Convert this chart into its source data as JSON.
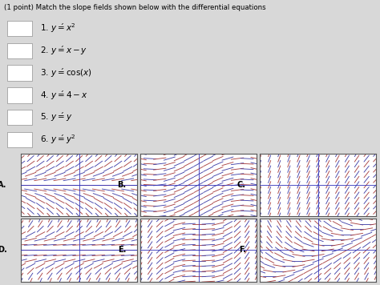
{
  "title": "(1 point) Match the slope fields shown below with the differential equations",
  "equations": [
    "1. $y\\'= x^2$",
    "2. $y\\'= x - y$",
    "3. $y\\'= \\cos(x)$",
    "4. $y\\'= 4 - x$",
    "5. $y\\'= y$",
    "6. $y\\'= y^2$"
  ],
  "labels": [
    "A",
    "B",
    "C",
    "D",
    "E",
    "F"
  ],
  "bg_color": "#d8d8d8",
  "panel_bg": "#ffffff",
  "arrow_color_blue": "#4444aa",
  "arrow_color_red": "#aa4444",
  "figsize": [
    4.74,
    3.56
  ],
  "dpi": 100,
  "panel_funcs": [
    "y",
    "cos_x",
    "four_minus_x",
    "y2",
    "x2",
    "x_minus_y"
  ]
}
